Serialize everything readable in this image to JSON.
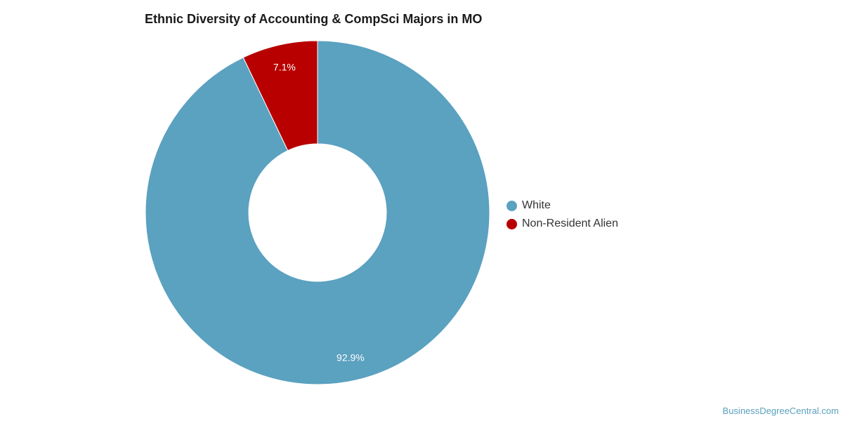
{
  "chart_data": {
    "type": "pie",
    "title": "Ethnic Diversity of Accounting & CompSci Majors in MO",
    "categories": [
      "White",
      "Non-Resident Alien"
    ],
    "values": [
      92.9,
      7.1
    ],
    "value_labels": [
      "92.9%",
      "7.1%"
    ],
    "colors": [
      "#5ba1c0",
      "#b80000"
    ],
    "donut": true,
    "legend": "right"
  },
  "watermark": "BusinessDegreeCentral.com"
}
